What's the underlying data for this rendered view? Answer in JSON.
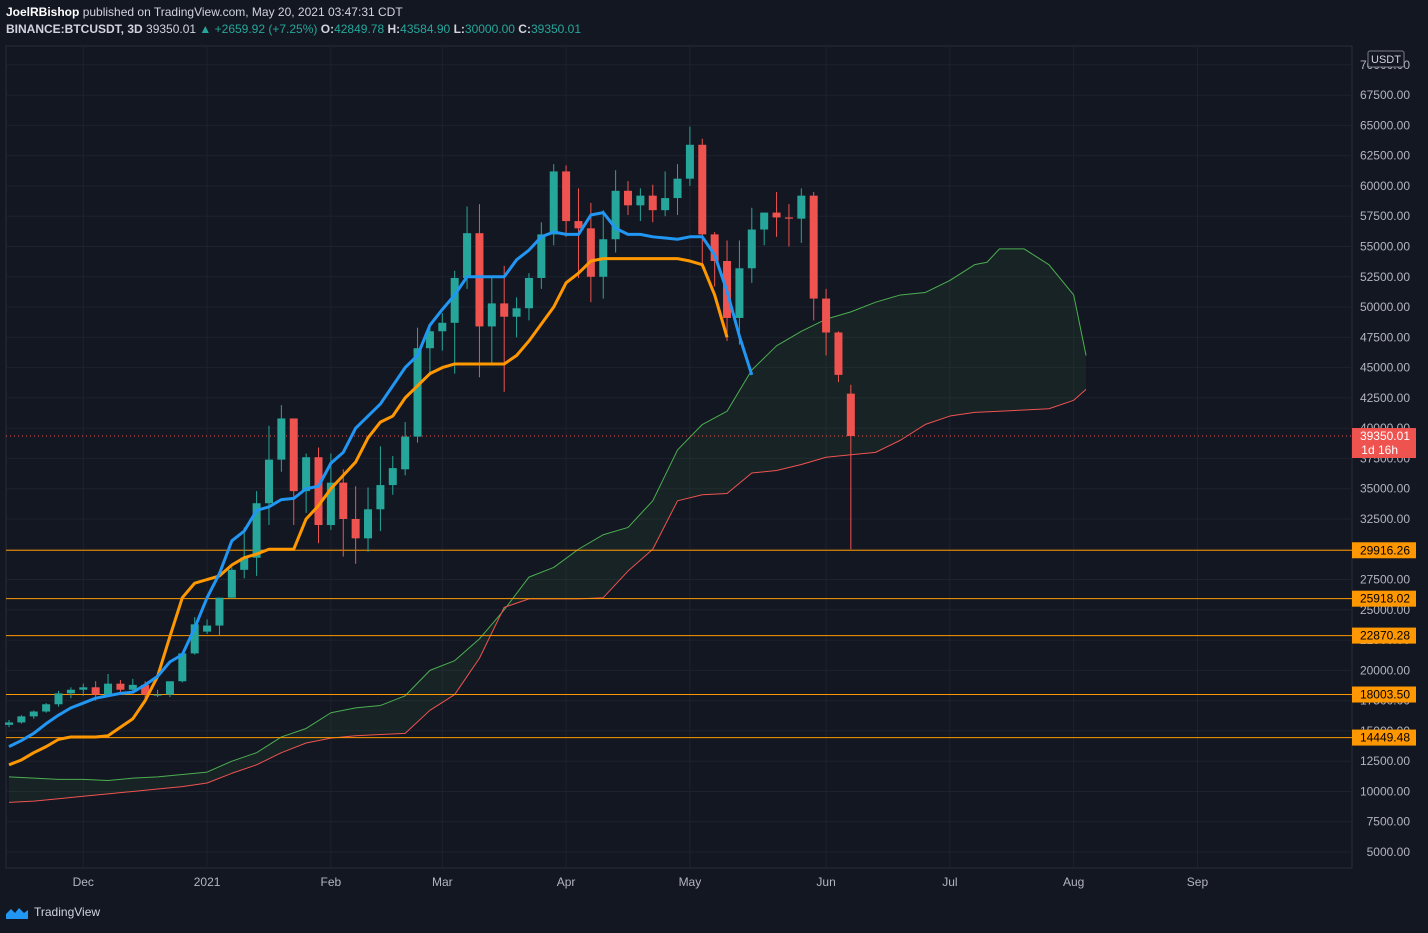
{
  "header": {
    "author": "JoelRBishop",
    "published": "published on TradingView.com, May 20, 2021 03:47:31 CDT",
    "symbol": "BINANCE:BTCUSDT, 3D",
    "last": "39350.01",
    "change": "▲ +2659.92 (+7.25%)",
    "o_label": "O:",
    "o": "42849.78",
    "h_label": "H:",
    "h": "43584.90",
    "l_label": "L:",
    "l": "30000.00",
    "c_label": "C:",
    "c": "39350.01"
  },
  "footer": {
    "brand": "TradingView"
  },
  "colors": {
    "background": "#131722",
    "up": "#26a69a",
    "down": "#ef5350",
    "conversion": "#2196f3",
    "base": "#ff9800",
    "span_a": "#4caf50",
    "span_b": "#ef5350",
    "cloud": "rgba(76,175,80,0.08)",
    "level_line": "#ff9800",
    "price_tag": "#ef5350"
  },
  "chart_data": {
    "type": "candlestick",
    "currency_label": "USDT",
    "y_ticks": [
      "5000.00",
      "7500.00",
      "10000.00",
      "12500.00",
      "15000.00",
      "17500.00",
      "20000.00",
      "22500.00",
      "25000.00",
      "27500.00",
      "30000.00",
      "32500.00",
      "35000.00",
      "37500.00",
      "40000.00",
      "42500.00",
      "45000.00",
      "47500.00",
      "50000.00",
      "52500.00",
      "55000.00",
      "57500.00",
      "60000.00",
      "62500.00",
      "65000.00",
      "67500.00",
      "70000.00"
    ],
    "x_ticks": [
      {
        "label": "Dec",
        "bar": 6
      },
      {
        "label": "2021",
        "bar": 16
      },
      {
        "label": "Feb",
        "bar": 26
      },
      {
        "label": "Mar",
        "bar": 35
      },
      {
        "label": "Apr",
        "bar": 45
      },
      {
        "label": "May",
        "bar": 55
      },
      {
        "label": "Jun",
        "bar": 66
      },
      {
        "label": "Jul",
        "bar": 76
      },
      {
        "label": "Aug",
        "bar": 86
      },
      {
        "label": "Sep",
        "bar": 96
      }
    ],
    "last_price": {
      "value": 39350.01,
      "label": "39350.01",
      "countdown": "1d 16h"
    },
    "levels": [
      29916.26,
      25918.02,
      22870.28,
      18003.5,
      14449.48
    ],
    "level_labels": [
      "29916.26",
      "25918.02",
      "22870.28",
      "18003.50",
      "14449.48"
    ],
    "candles": [
      [
        15500,
        15900,
        15300,
        15700
      ],
      [
        15700,
        16300,
        15600,
        16200
      ],
      [
        16200,
        16700,
        16000,
        16600
      ],
      [
        16600,
        17300,
        16500,
        17200
      ],
      [
        17200,
        18300,
        17000,
        18100
      ],
      [
        18100,
        18600,
        17700,
        18400
      ],
      [
        18400,
        18900,
        17900,
        18600
      ],
      [
        18600,
        19100,
        17500,
        18000
      ],
      [
        18000,
        19700,
        17900,
        18900
      ],
      [
        18900,
        19200,
        18200,
        18400
      ],
      [
        18400,
        19300,
        18300,
        18800
      ],
      [
        18800,
        19100,
        17500,
        18000
      ],
      [
        18000,
        18400,
        17800,
        18000
      ],
      [
        18000,
        19000,
        17800,
        19100
      ],
      [
        19100,
        21500,
        19000,
        21400
      ],
      [
        21400,
        24400,
        21300,
        23800
      ],
      [
        23200,
        24200,
        23000,
        23700
      ],
      [
        23700,
        26000,
        22900,
        26000
      ],
      [
        26000,
        28500,
        25900,
        28300
      ],
      [
        28300,
        31800,
        27600,
        29300
      ],
      [
        29300,
        34800,
        27800,
        33800
      ],
      [
        33800,
        40200,
        32000,
        37400
      ],
      [
        37400,
        41900,
        36400,
        40800
      ],
      [
        40800,
        40700,
        32000,
        34800
      ],
      [
        34800,
        37900,
        33000,
        37600
      ],
      [
        37600,
        38400,
        30500,
        32000
      ],
      [
        32000,
        37900,
        31600,
        35500
      ],
      [
        35500,
        36600,
        29400,
        32500
      ],
      [
        32500,
        35200,
        28800,
        30900
      ],
      [
        30900,
        35100,
        29800,
        33300
      ],
      [
        33300,
        38500,
        31500,
        35300
      ],
      [
        35300,
        37700,
        34500,
        36700
      ],
      [
        36600,
        40500,
        36100,
        39300
      ],
      [
        39300,
        48300,
        38800,
        46600
      ],
      [
        46600,
        48400,
        44500,
        48000
      ],
      [
        48000,
        49500,
        46400,
        48700
      ],
      [
        48700,
        53000,
        44500,
        52400
      ],
      [
        52400,
        58300,
        51500,
        56100
      ],
      [
        56100,
        58500,
        44200,
        48400
      ],
      [
        48400,
        52500,
        45400,
        50300
      ],
      [
        50300,
        53400,
        43000,
        49200
      ],
      [
        49200,
        50800,
        47500,
        49900
      ],
      [
        49900,
        52800,
        48900,
        52400
      ],
      [
        52400,
        57000,
        51500,
        56000
      ],
      [
        56000,
        61800,
        55100,
        61200
      ],
      [
        61200,
        61700,
        55800,
        57100
      ],
      [
        57100,
        59800,
        52400,
        56500
      ],
      [
        56500,
        58600,
        50400,
        52500
      ],
      [
        52500,
        58000,
        50700,
        55600
      ],
      [
        55600,
        61300,
        54500,
        59600
      ],
      [
        59600,
        60400,
        57600,
        58400
      ],
      [
        58400,
        59800,
        57100,
        59200
      ],
      [
        59200,
        60100,
        57000,
        58000
      ],
      [
        58000,
        61200,
        57500,
        59000
      ],
      [
        59000,
        61800,
        57600,
        60600
      ],
      [
        60600,
        64900,
        60000,
        63400
      ],
      [
        63400,
        63900,
        53200,
        56000
      ],
      [
        56000,
        56200,
        51700,
        53800
      ],
      [
        53800,
        55500,
        47200,
        49100
      ],
      [
        49100,
        55500,
        46900,
        53200
      ],
      [
        53200,
        58200,
        52000,
        56400
      ],
      [
        56400,
        57800,
        55100,
        57800
      ],
      [
        57800,
        59500,
        55800,
        57400
      ],
      [
        57400,
        58500,
        55000,
        57300
      ],
      [
        57300,
        59800,
        55300,
        59200
      ],
      [
        59200,
        59500,
        48900,
        50700
      ],
      [
        50700,
        51500,
        46000,
        47900
      ],
      [
        47900,
        48000,
        43800,
        44400
      ],
      [
        42849.78,
        43584.9,
        30000,
        39350.01
      ]
    ],
    "conversion_line": [
      [
        0,
        13700
      ],
      [
        1,
        14200
      ],
      [
        2,
        14800
      ],
      [
        3,
        15600
      ],
      [
        4,
        16300
      ],
      [
        5,
        16900
      ],
      [
        6,
        17300
      ],
      [
        7,
        17700
      ],
      [
        8,
        17900
      ],
      [
        9,
        18100
      ],
      [
        10,
        18200
      ],
      [
        11,
        18800
      ],
      [
        12,
        19500
      ],
      [
        13,
        20700
      ],
      [
        14,
        21300
      ],
      [
        15,
        23500
      ],
      [
        16,
        26000
      ],
      [
        17,
        28000
      ],
      [
        18,
        30700
      ],
      [
        19,
        31500
      ],
      [
        20,
        33200
      ],
      [
        21,
        33500
      ],
      [
        22,
        34100
      ],
      [
        23,
        34200
      ],
      [
        24,
        35000
      ],
      [
        25,
        35200
      ],
      [
        26,
        37100
      ],
      [
        27,
        38000
      ],
      [
        28,
        40000
      ],
      [
        29,
        41000
      ],
      [
        30,
        42000
      ],
      [
        31,
        43500
      ],
      [
        32,
        45000
      ],
      [
        33,
        46000
      ],
      [
        34,
        48500
      ],
      [
        35,
        49800
      ],
      [
        36,
        51000
      ],
      [
        37,
        52500
      ],
      [
        38,
        52500
      ],
      [
        39,
        52500
      ],
      [
        40,
        52500
      ],
      [
        41,
        53900
      ],
      [
        42,
        54700
      ],
      [
        43,
        55800
      ],
      [
        44,
        56200
      ],
      [
        45,
        56000
      ],
      [
        46,
        56000
      ],
      [
        47,
        57600
      ],
      [
        48,
        57800
      ],
      [
        49,
        56500
      ],
      [
        50,
        56000
      ],
      [
        51,
        56000
      ],
      [
        52,
        55800
      ],
      [
        53,
        55700
      ],
      [
        54,
        55600
      ],
      [
        55,
        55800
      ],
      [
        56,
        55800
      ],
      [
        57,
        54300
      ],
      [
        58,
        51300
      ],
      [
        59,
        47600
      ],
      [
        60,
        44400
      ]
    ],
    "base_line": [
      [
        0,
        12200
      ],
      [
        1,
        12600
      ],
      [
        2,
        13200
      ],
      [
        3,
        13700
      ],
      [
        4,
        14300
      ],
      [
        5,
        14500
      ],
      [
        6,
        14500
      ],
      [
        7,
        14500
      ],
      [
        8,
        14600
      ],
      [
        9,
        15300
      ],
      [
        10,
        16000
      ],
      [
        11,
        17500
      ],
      [
        12,
        19500
      ],
      [
        13,
        22800
      ],
      [
        14,
        26000
      ],
      [
        15,
        27200
      ],
      [
        16,
        27500
      ],
      [
        17,
        27800
      ],
      [
        18,
        28700
      ],
      [
        19,
        29300
      ],
      [
        20,
        29600
      ],
      [
        21,
        30000
      ],
      [
        22,
        30000
      ],
      [
        23,
        30000
      ],
      [
        24,
        32500
      ],
      [
        25,
        33600
      ],
      [
        26,
        35000
      ],
      [
        27,
        36100
      ],
      [
        28,
        37200
      ],
      [
        29,
        39200
      ],
      [
        30,
        40500
      ],
      [
        31,
        41000
      ],
      [
        32,
        42500
      ],
      [
        33,
        43500
      ],
      [
        34,
        44500
      ],
      [
        35,
        45000
      ],
      [
        36,
        45300
      ],
      [
        37,
        45300
      ],
      [
        38,
        45300
      ],
      [
        39,
        45300
      ],
      [
        40,
        45300
      ],
      [
        41,
        46000
      ],
      [
        42,
        47200
      ],
      [
        43,
        48600
      ],
      [
        44,
        50000
      ],
      [
        45,
        52000
      ],
      [
        46,
        52800
      ],
      [
        47,
        53800
      ],
      [
        48,
        54000
      ],
      [
        49,
        54000
      ],
      [
        50,
        54000
      ],
      [
        51,
        54000
      ],
      [
        52,
        54000
      ],
      [
        53,
        54000
      ],
      [
        54,
        54000
      ],
      [
        55,
        53800
      ],
      [
        56,
        53500
      ],
      [
        57,
        51000
      ],
      [
        58,
        47500
      ]
    ],
    "span_a": [
      [
        0,
        11200
      ],
      [
        2,
        11100
      ],
      [
        4,
        11000
      ],
      [
        6,
        11000
      ],
      [
        8,
        10900
      ],
      [
        10,
        11100
      ],
      [
        12,
        11200
      ],
      [
        14,
        11400
      ],
      [
        16,
        11600
      ],
      [
        18,
        12500
      ],
      [
        20,
        13200
      ],
      [
        22,
        14500
      ],
      [
        24,
        15200
      ],
      [
        26,
        16500
      ],
      [
        28,
        16900
      ],
      [
        30,
        17100
      ],
      [
        32,
        17900
      ],
      [
        34,
        20000
      ],
      [
        36,
        20800
      ],
      [
        38,
        22600
      ],
      [
        40,
        25000
      ],
      [
        42,
        27700
      ],
      [
        44,
        28500
      ],
      [
        46,
        30000
      ],
      [
        48,
        31200
      ],
      [
        50,
        31800
      ],
      [
        52,
        34000
      ],
      [
        54,
        38200
      ],
      [
        56,
        40300
      ],
      [
        58,
        41400
      ],
      [
        60,
        44800
      ],
      [
        62,
        46800
      ],
      [
        64,
        48000
      ],
      [
        66,
        49000
      ],
      [
        68,
        49600
      ],
      [
        70,
        50400
      ],
      [
        72,
        51000
      ],
      [
        74,
        51200
      ],
      [
        76,
        52200
      ],
      [
        78,
        53500
      ],
      [
        79,
        53700
      ],
      [
        80,
        54800
      ],
      [
        82,
        54800
      ],
      [
        84,
        53500
      ],
      [
        86,
        51000
      ],
      [
        87,
        46000
      ]
    ],
    "span_b": [
      [
        0,
        9100
      ],
      [
        2,
        9200
      ],
      [
        4,
        9400
      ],
      [
        6,
        9600
      ],
      [
        8,
        9800
      ],
      [
        10,
        10000
      ],
      [
        12,
        10200
      ],
      [
        14,
        10400
      ],
      [
        16,
        10700
      ],
      [
        18,
        11500
      ],
      [
        20,
        12200
      ],
      [
        22,
        13200
      ],
      [
        24,
        14000
      ],
      [
        26,
        14400
      ],
      [
        28,
        14600
      ],
      [
        30,
        14700
      ],
      [
        32,
        14800
      ],
      [
        34,
        16700
      ],
      [
        36,
        18000
      ],
      [
        38,
        21000
      ],
      [
        40,
        25200
      ],
      [
        42,
        25900
      ],
      [
        44,
        25900
      ],
      [
        46,
        25900
      ],
      [
        48,
        26000
      ],
      [
        50,
        28200
      ],
      [
        52,
        30000
      ],
      [
        54,
        34000
      ],
      [
        56,
        34500
      ],
      [
        58,
        34600
      ],
      [
        60,
        36300
      ],
      [
        62,
        36500
      ],
      [
        64,
        37000
      ],
      [
        66,
        37600
      ],
      [
        68,
        37800
      ],
      [
        70,
        38000
      ],
      [
        72,
        39000
      ],
      [
        74,
        40300
      ],
      [
        76,
        41000
      ],
      [
        78,
        41300
      ],
      [
        80,
        41400
      ],
      [
        82,
        41500
      ],
      [
        84,
        41600
      ],
      [
        86,
        42300
      ],
      [
        87,
        43200
      ]
    ]
  }
}
